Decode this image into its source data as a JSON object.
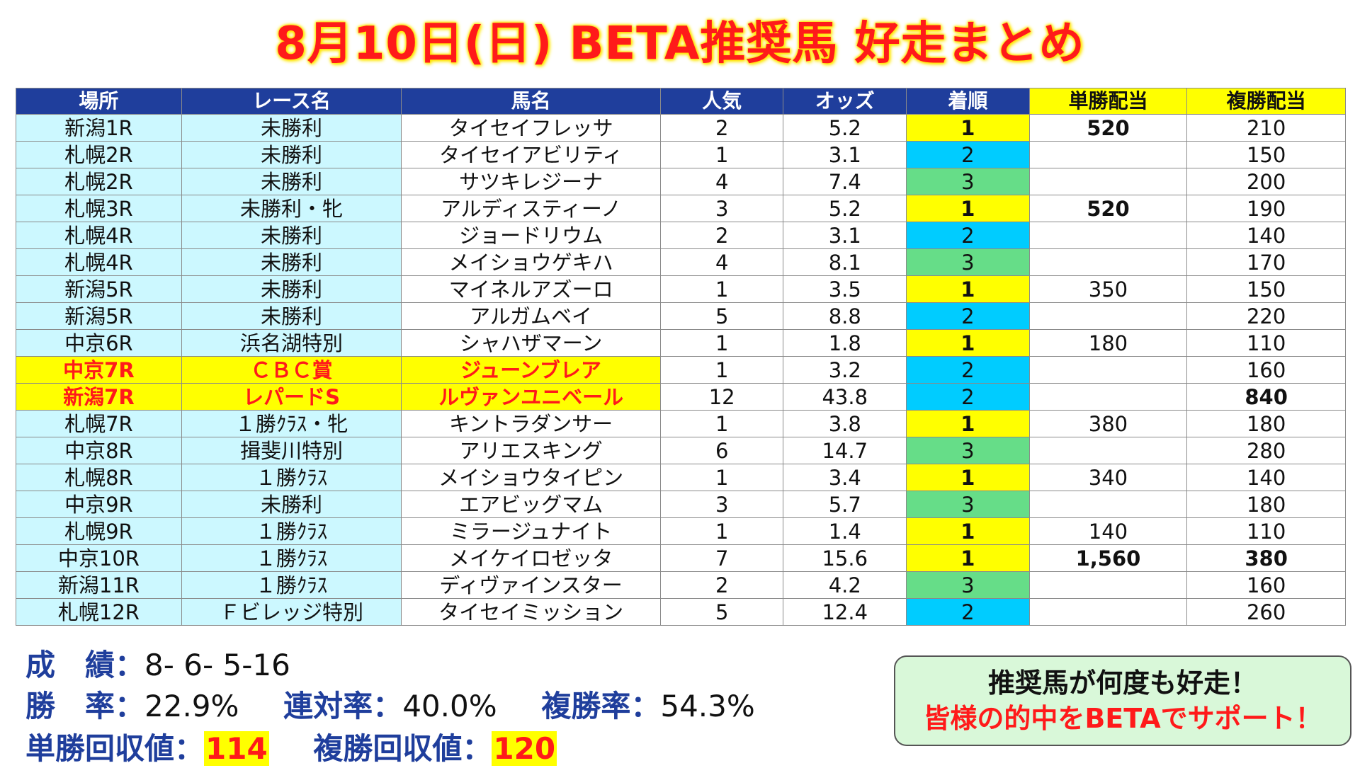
{
  "title": "8月10日(日) BETA推奨馬 好走まとめ",
  "table": {
    "headers": [
      "場所",
      "レース名",
      "馬名",
      "人気",
      "オッズ",
      "着順",
      "単勝配当",
      "複勝配当"
    ],
    "rows": [
      {
        "venue": "新潟1R",
        "race": "未勝利",
        "horse": "タイセイフレッサ",
        "pop": "2",
        "odds": "5.2",
        "finish": "1",
        "win": "520",
        "win_style": "redb",
        "place": "210",
        "place_style": "red",
        "hl": false
      },
      {
        "venue": "札幌2R",
        "race": "未勝利",
        "horse": "タイセイアビリティ",
        "pop": "1",
        "odds": "3.1",
        "finish": "2",
        "win": "",
        "win_style": "",
        "place": "150",
        "place_style": "",
        "hl": false
      },
      {
        "venue": "札幌2R",
        "race": "未勝利",
        "horse": "サツキレジーナ",
        "pop": "4",
        "odds": "7.4",
        "finish": "3",
        "win": "",
        "win_style": "",
        "place": "200",
        "place_style": "red",
        "hl": false
      },
      {
        "venue": "札幌3R",
        "race": "未勝利・牝",
        "horse": "アルディスティーノ",
        "pop": "3",
        "odds": "5.2",
        "finish": "1",
        "win": "520",
        "win_style": "redb",
        "place": "190",
        "place_style": "",
        "hl": false
      },
      {
        "venue": "札幌4R",
        "race": "未勝利",
        "horse": "ジョードリウム",
        "pop": "2",
        "odds": "3.1",
        "finish": "2",
        "win": "",
        "win_style": "",
        "place": "140",
        "place_style": "",
        "hl": false
      },
      {
        "venue": "札幌4R",
        "race": "未勝利",
        "horse": "メイショウゲキハ",
        "pop": "4",
        "odds": "8.1",
        "finish": "3",
        "win": "",
        "win_style": "",
        "place": "170",
        "place_style": "",
        "hl": false
      },
      {
        "venue": "新潟5R",
        "race": "未勝利",
        "horse": "マイネルアズーロ",
        "pop": "1",
        "odds": "3.5",
        "finish": "1",
        "win": "350",
        "win_style": "red",
        "place": "150",
        "place_style": "",
        "hl": false
      },
      {
        "venue": "新潟5R",
        "race": "未勝利",
        "horse": "アルガムベイ",
        "pop": "5",
        "odds": "8.8",
        "finish": "2",
        "win": "",
        "win_style": "",
        "place": "220",
        "place_style": "red",
        "hl": false
      },
      {
        "venue": "中京6R",
        "race": "浜名湖特別",
        "horse": "シャハザマーン",
        "pop": "1",
        "odds": "1.8",
        "finish": "1",
        "win": "180",
        "win_style": "",
        "place": "110",
        "place_style": "",
        "hl": false
      },
      {
        "venue": "中京7R",
        "race": "ＣＢＣ賞",
        "horse": "ジューンブレア",
        "pop": "1",
        "odds": "3.2",
        "finish": "2",
        "win": "",
        "win_style": "",
        "place": "160",
        "place_style": "",
        "hl": true
      },
      {
        "venue": "新潟7R",
        "race": "レパードS",
        "horse": "ルヴァンユニベール",
        "pop": "12",
        "odds": "43.8",
        "finish": "2",
        "win": "",
        "win_style": "",
        "place": "840",
        "place_style": "redb",
        "hl": true
      },
      {
        "venue": "札幌7R",
        "race": "１勝ｸﾗｽ・牝",
        "horse": "キントラダンサー",
        "pop": "1",
        "odds": "3.8",
        "finish": "1",
        "win": "380",
        "win_style": "red",
        "place": "180",
        "place_style": "",
        "hl": false
      },
      {
        "venue": "中京8R",
        "race": "揖斐川特別",
        "horse": "アリエスキング",
        "pop": "6",
        "odds": "14.7",
        "finish": "3",
        "win": "",
        "win_style": "",
        "place": "280",
        "place_style": "red",
        "hl": false
      },
      {
        "venue": "札幌8R",
        "race": "１勝ｸﾗｽ",
        "horse": "メイショウタイピン",
        "pop": "1",
        "odds": "3.4",
        "finish": "1",
        "win": "340",
        "win_style": "red",
        "place": "140",
        "place_style": "",
        "hl": false
      },
      {
        "venue": "中京9R",
        "race": "未勝利",
        "horse": "エアビッグマム",
        "pop": "3",
        "odds": "5.7",
        "finish": "3",
        "win": "",
        "win_style": "",
        "place": "180",
        "place_style": "",
        "hl": false
      },
      {
        "venue": "札幌9R",
        "race": "１勝ｸﾗｽ",
        "horse": "ミラージュナイト",
        "pop": "1",
        "odds": "1.4",
        "finish": "1",
        "win": "140",
        "win_style": "",
        "place": "110",
        "place_style": "",
        "hl": false
      },
      {
        "venue": "中京10R",
        "race": "１勝ｸﾗｽ",
        "horse": "メイケイロゼッタ",
        "pop": "7",
        "odds": "15.6",
        "finish": "1",
        "win": "1,560",
        "win_style": "redb",
        "place": "380",
        "place_style": "redb",
        "hl": false
      },
      {
        "venue": "新潟11R",
        "race": "１勝ｸﾗｽ",
        "horse": "ディヴァインスター",
        "pop": "2",
        "odds": "4.2",
        "finish": "3",
        "win": "",
        "win_style": "",
        "place": "160",
        "place_style": "",
        "hl": false
      },
      {
        "venue": "札幌12R",
        "race": "Ｆビレッジ特別",
        "horse": "タイセイミッション",
        "pop": "5",
        "odds": "12.4",
        "finish": "2",
        "win": "",
        "win_style": "",
        "place": "260",
        "place_style": "red",
        "hl": false
      }
    ]
  },
  "stats": {
    "record_label": "成　績：",
    "record_value": "8- 6- 5-16",
    "win_rate_label": "勝　率：",
    "win_rate_value": "22.9%",
    "quinella_label": "連対率：",
    "quinella_value": "40.0%",
    "place_rate_label": "複勝率：",
    "place_rate_value": "54.3%",
    "win_return_label": "単勝回収値：",
    "win_return_value": "114",
    "place_return_label": "複勝回収値：",
    "place_return_value": "120"
  },
  "callout": {
    "line1": "推奨馬が何度も好走！",
    "line2": "皆様の的中をBETAでサポート！"
  }
}
